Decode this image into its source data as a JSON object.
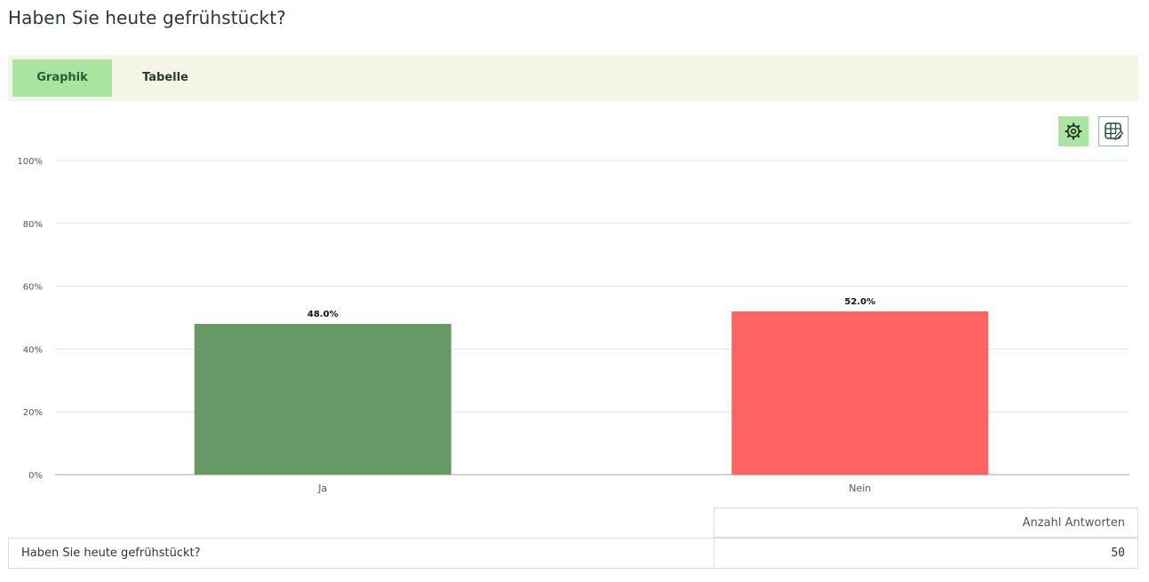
{
  "page": {
    "title": "Haben Sie heute gefrühstückt?"
  },
  "tabs": [
    {
      "label": "Graphik",
      "active": true
    },
    {
      "label": "Tabelle",
      "active": false
    }
  ],
  "toolbar": {
    "settings_icon": "gear-icon",
    "table_edit_icon": "table-edit-icon"
  },
  "chart_data": {
    "type": "bar",
    "categories": [
      "Ja",
      "Nein"
    ],
    "values": [
      48.0,
      52.0
    ],
    "value_labels": [
      "48.0%",
      "52.0%"
    ],
    "colors": [
      "#679966",
      "#ff6462"
    ],
    "y_ticks": [
      "0%",
      "20%",
      "40%",
      "60%",
      "80%",
      "100%"
    ],
    "ylim": [
      0,
      100
    ],
    "grid": true
  },
  "summary": {
    "column_header": "Anzahl Antworten",
    "question": "Haben Sie heute gefrühstückt?",
    "count": "50"
  }
}
